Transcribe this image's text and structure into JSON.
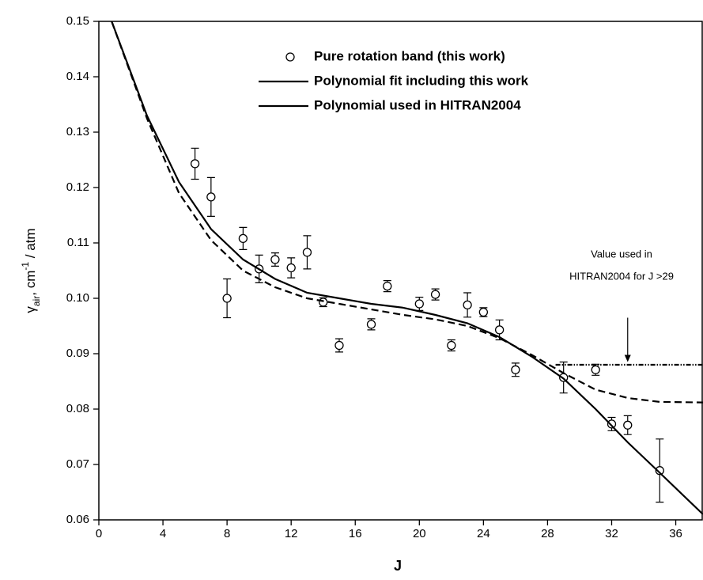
{
  "chart_data": {
    "type": "scatter",
    "x_label": "J",
    "y_label": [
      "γ",
      "air",
      ", cm",
      "-1",
      " / atm"
    ],
    "xlim": [
      0,
      37.7
    ],
    "ylim": [
      0.06,
      0.15
    ],
    "xticks": [
      0,
      4,
      8,
      12,
      16,
      20,
      24,
      28,
      32,
      36
    ],
    "yticks": [
      0.06,
      0.07,
      0.08,
      0.09,
      {
        "value": 0.1,
        "label": "0.10"
      },
      0.11,
      0.12,
      0.13,
      0.14,
      0.15
    ],
    "series": [
      {
        "name": "Pure rotation band (this work)",
        "type": "scatter",
        "color": "#000000",
        "x": [
          6,
          7,
          8,
          9,
          10,
          11,
          12,
          13,
          14,
          15,
          17,
          18,
          20,
          21,
          22,
          23,
          24,
          25,
          26,
          29,
          31,
          32,
          33,
          35
        ],
        "values": [
          0.1243,
          0.1183,
          0.1,
          0.1108,
          0.1053,
          0.107,
          0.1055,
          0.1083,
          0.0993,
          0.0915,
          0.0953,
          0.1022,
          0.099,
          0.1007,
          0.0915,
          0.0988,
          0.0975,
          0.0943,
          0.0871,
          0.0857,
          0.0871,
          0.0773,
          0.0771,
          0.0689
        ],
        "errors": [
          0.0028,
          0.0035,
          0.0035,
          0.002,
          0.0025,
          0.0012,
          0.0018,
          0.003,
          0.0008,
          0.0012,
          0.001,
          0.001,
          0.0012,
          0.001,
          0.001,
          0.0022,
          0.0008,
          0.0018,
          0.0012,
          0.0028,
          0.001,
          0.0012,
          0.0017,
          0.0057
        ]
      },
      {
        "name": "Polynomial fit including this work",
        "type": "line",
        "color": "#000000",
        "dash": "none",
        "x": [
          0.8,
          3,
          5,
          7,
          9,
          11,
          13,
          15,
          17,
          19,
          21,
          23,
          25,
          27,
          29,
          31,
          33,
          35,
          37.7
        ],
        "values": [
          0.15,
          0.133,
          0.121,
          0.1125,
          0.107,
          0.1035,
          0.101,
          0.1,
          0.099,
          0.0983,
          0.097,
          0.0955,
          0.093,
          0.0895,
          0.0855,
          0.08,
          0.074,
          0.0685,
          0.061
        ]
      },
      {
        "name": "Polynomial used in HITRAN2004",
        "type": "line",
        "color": "#000000",
        "dash": "9,5",
        "x": [
          0.8,
          3,
          5,
          7,
          9,
          11,
          13,
          15,
          17,
          19,
          21,
          23,
          25,
          27,
          29,
          31,
          33,
          35,
          37.7
        ],
        "values": [
          0.15,
          0.1325,
          0.119,
          0.1105,
          0.105,
          0.102,
          0.1,
          0.099,
          0.098,
          0.097,
          0.0962,
          0.095,
          0.0928,
          0.0898,
          0.0865,
          0.0835,
          0.082,
          0.0813,
          0.0812
        ]
      },
      {
        "type": "line",
        "color": "#000000",
        "dash": "6,2,1.5,2,1.5,2",
        "x": [
          28.5,
          37.7
        ],
        "values": [
          0.088,
          0.088
        ]
      }
    ],
    "annotation": {
      "lines": [
        "Value used in",
        "HITRAN2004 for J >29"
      ],
      "arrow_x": 33,
      "arrow_from": 0.0965,
      "arrow_to": 0.0885
    }
  }
}
